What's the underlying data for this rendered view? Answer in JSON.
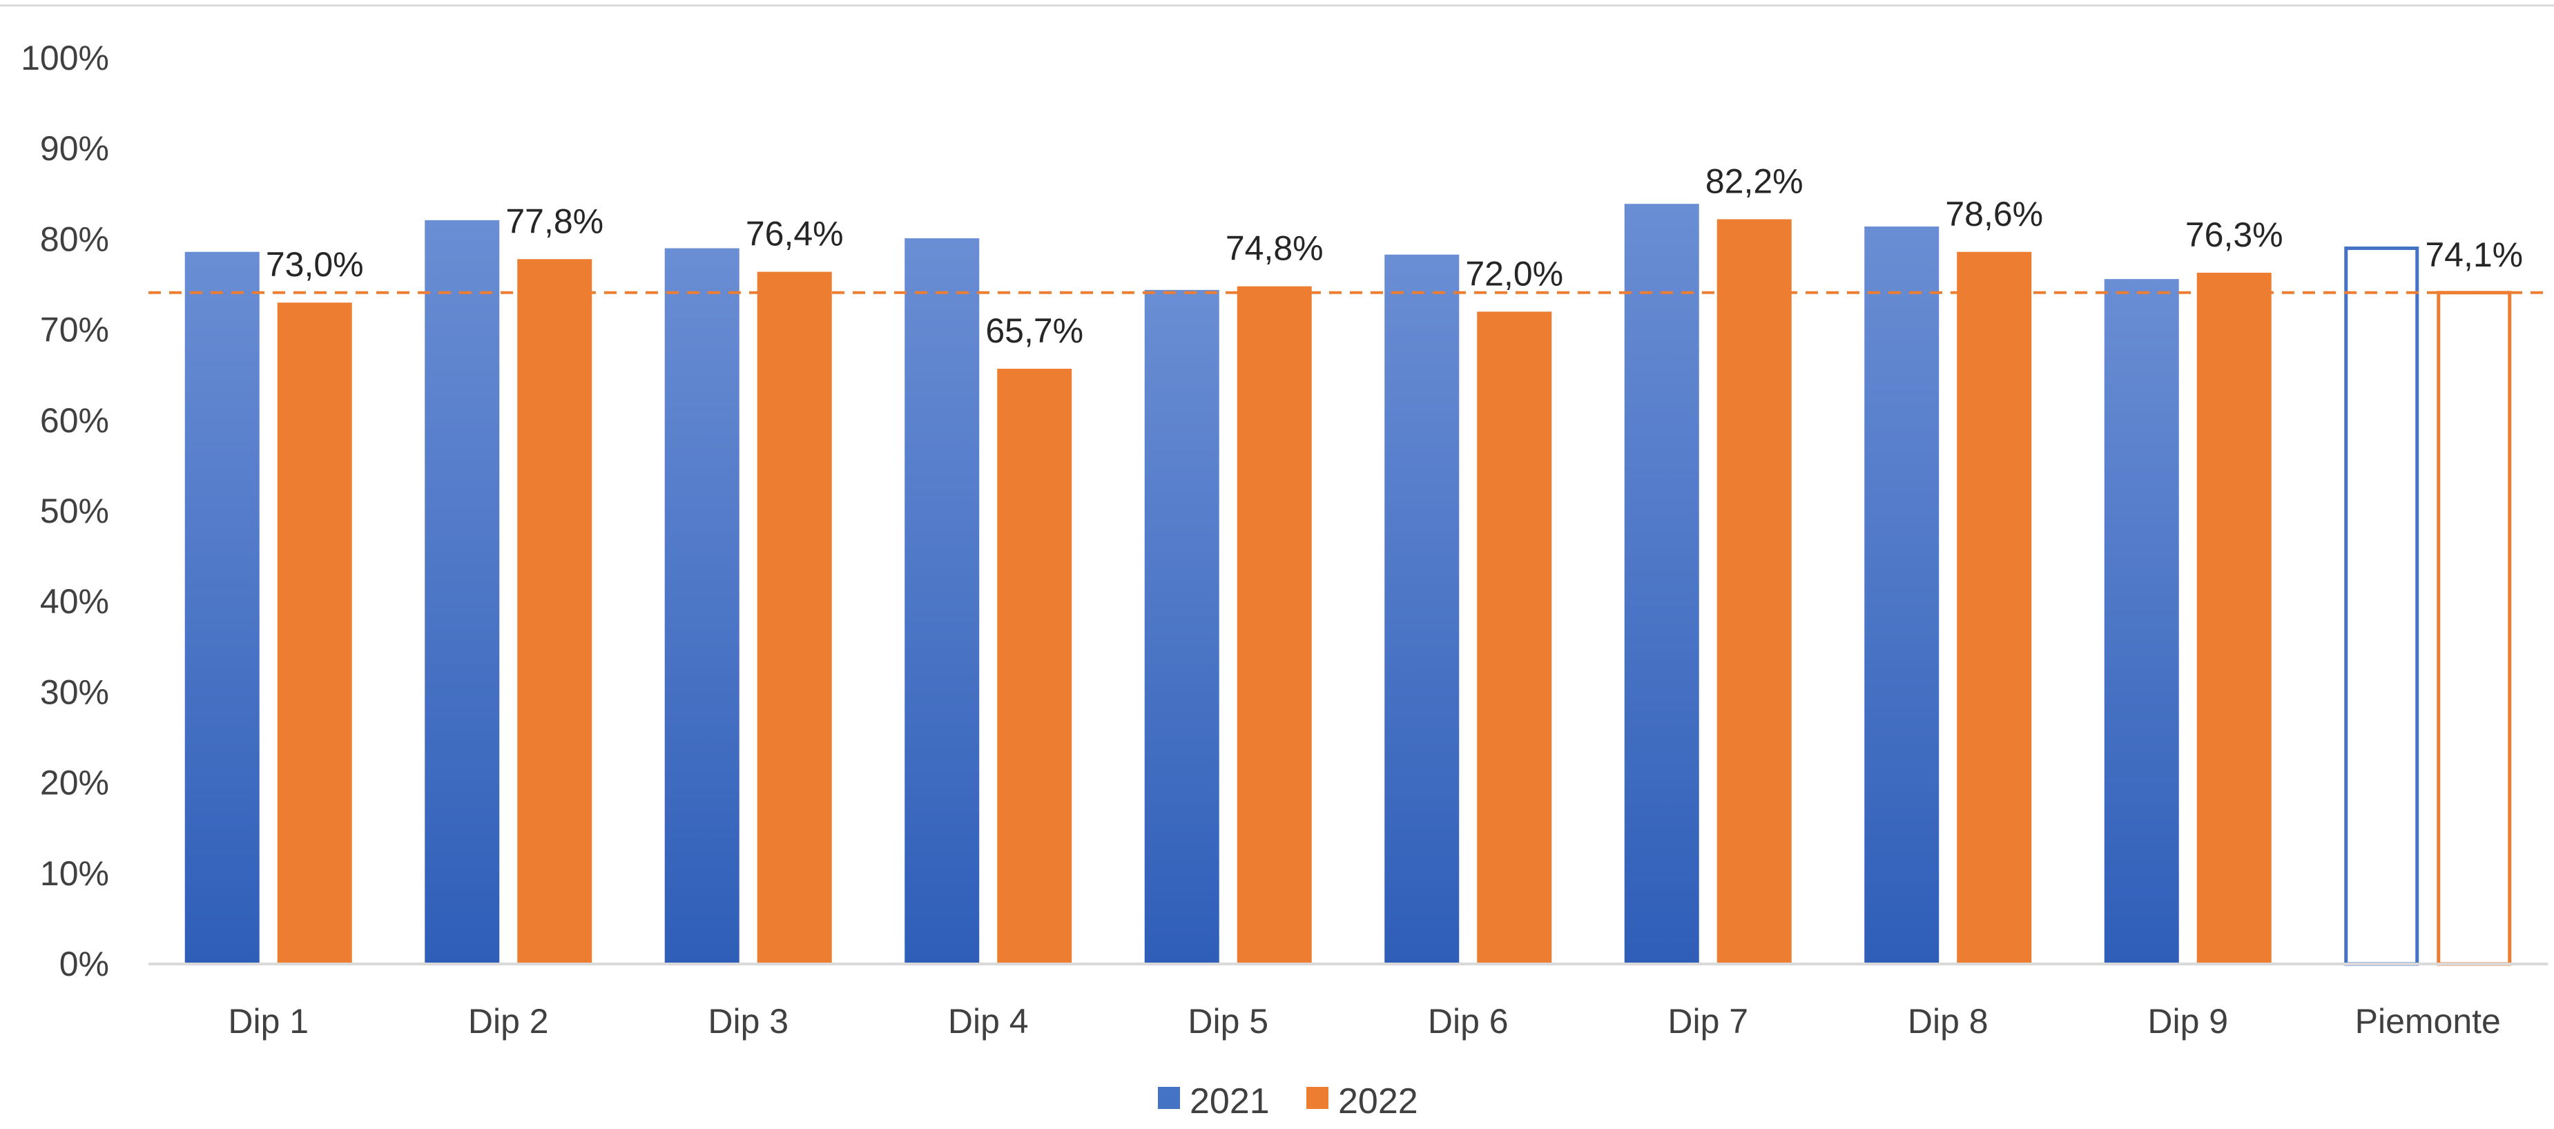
{
  "chart_data": {
    "type": "bar",
    "title": "",
    "xlabel": "",
    "ylabel": "",
    "categories": [
      "Dip 1",
      "Dip 2",
      "Dip 3",
      "Dip 4",
      "Dip 5",
      "Dip 6",
      "Dip 7",
      "Dip 8",
      "Dip 9",
      "Piemonte"
    ],
    "series": [
      {
        "name": "2021",
        "color": "#4472C4",
        "values": [
          78.6,
          82.1,
          79.0,
          80.1,
          74.4,
          78.3,
          83.9,
          81.4,
          75.6,
          79.0
        ],
        "data_labels": [
          "",
          "",
          "",
          "",
          "",
          "",
          "",
          "",
          "",
          ""
        ]
      },
      {
        "name": "2022",
        "color": "#ED7D31",
        "values": [
          73.0,
          77.8,
          76.4,
          65.7,
          74.8,
          72.0,
          82.2,
          78.6,
          76.3,
          74.1
        ],
        "data_labels": [
          "73,0%",
          "77,8%",
          "76,4%",
          "65,7%",
          "74,8%",
          "72,0%",
          "82,2%",
          "78,6%",
          "76,3%",
          "74,1%"
        ]
      }
    ],
    "outlined_category": "Piemonte",
    "reference_line": {
      "value": 74.1,
      "color": "#ED7D31",
      "style": "dashed"
    },
    "ylim": [
      0,
      100
    ],
    "yticks": [
      "0%",
      "10%",
      "20%",
      "30%",
      "40%",
      "50%",
      "60%",
      "70%",
      "80%",
      "90%",
      "100%"
    ],
    "grid": false,
    "legend": {
      "position": "bottom",
      "entries": [
        "2021",
        "2022"
      ]
    }
  }
}
